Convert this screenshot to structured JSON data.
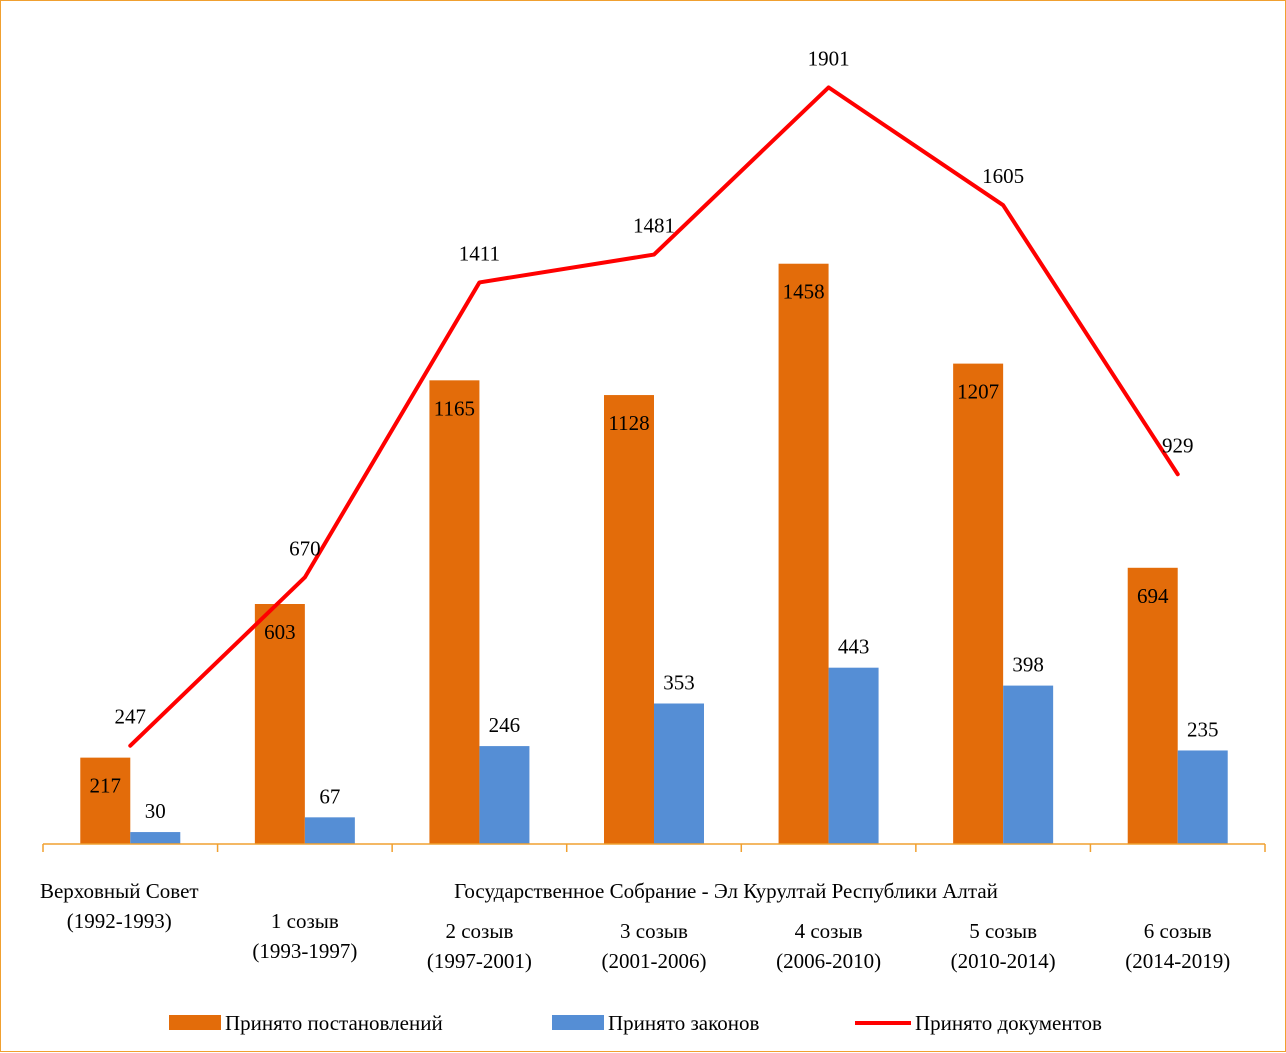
{
  "chart_data": {
    "type": "bar",
    "categories": [
      [
        "Верховный Совет",
        "(1992-1993)"
      ],
      [
        "1 созыв",
        "(1993-1997)"
      ],
      [
        "2 созыв",
        "(1997-2001)"
      ],
      [
        "3 созыв",
        "(2001-2006)"
      ],
      [
        "4 созыв",
        "(2006-2010)"
      ],
      [
        "5 созыв",
        "(2010-2014)"
      ],
      [
        "6 созыв",
        "(2014-2019)"
      ]
    ],
    "group_label": "Государственное Собрание - Эл Курултай Республики Алтай",
    "series": [
      {
        "name": "Принято постановлений",
        "type": "bar",
        "color": "#e36c0a",
        "values": [
          217,
          603,
          1165,
          1128,
          1458,
          1207,
          694
        ]
      },
      {
        "name": "Принято законов",
        "type": "bar",
        "color": "#558ed5",
        "values": [
          30,
          67,
          246,
          353,
          443,
          398,
          235
        ]
      },
      {
        "name": "Принято документов",
        "type": "line",
        "color": "#ff0000",
        "values": [
          247,
          670,
          1411,
          1481,
          1901,
          1605,
          929
        ]
      }
    ],
    "ylim": [
      0,
      2000
    ],
    "grid": false,
    "legend_position": "bottom",
    "title": "",
    "xlabel": "",
    "ylabel": ""
  }
}
